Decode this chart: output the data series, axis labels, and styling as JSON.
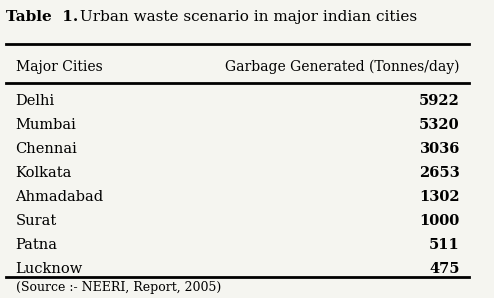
{
  "title_bold": "Table  1.",
  "title_rest": " Urban waste scenario in major indian cities",
  "col1_header": "Major Cities",
  "col2_header": "Garbage Generated (Tonnes/day)",
  "cities": [
    "Delhi",
    "Mumbai",
    "Chennai",
    "Kolkata",
    "Ahmadabad",
    "Surat",
    "Patna",
    "Lucknow"
  ],
  "values": [
    "5922",
    "5320",
    "3036",
    "2653",
    "1302",
    "1000",
    "511",
    "475"
  ],
  "source": "(Source :- NEERI, Report, 2005)",
  "bg_color": "#f5f5f0",
  "text_color": "#000000",
  "figsize": [
    4.94,
    2.98
  ],
  "dpi": 100
}
